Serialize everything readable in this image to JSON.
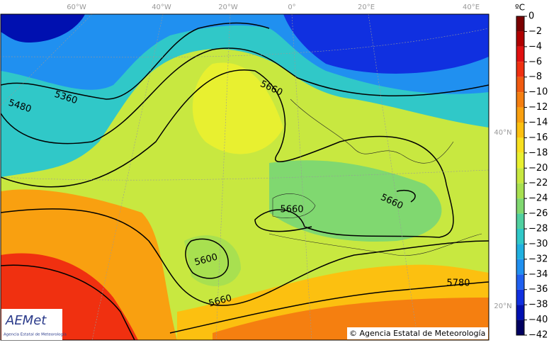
{
  "map": {
    "lon_labels": [
      "60°W",
      "40°W",
      "20°W",
      "0°",
      "20°E",
      "40°E"
    ],
    "lat_labels": [
      "40°N",
      "20°N"
    ],
    "contour_labels": [
      5360,
      5480,
      5660,
      5660,
      5660,
      5600,
      5660,
      5780
    ]
  },
  "colorbar": {
    "unit": "ºC",
    "ticks": [
      0,
      {
        "value": -2,
        "label": "−2"
      },
      {
        "value": -4,
        "label": "−4"
      },
      {
        "value": -6,
        "label": "−6"
      },
      {
        "value": -8,
        "label": "−8"
      },
      {
        "value": -10,
        "label": "−10"
      },
      {
        "value": -12,
        "label": "−12"
      },
      {
        "value": -14,
        "label": "−14"
      },
      {
        "value": -16,
        "label": "−16"
      },
      {
        "value": -18,
        "label": "−18"
      },
      {
        "value": -20,
        "label": "−20"
      },
      {
        "value": -22,
        "label": "−22"
      },
      {
        "value": -24,
        "label": "−24"
      },
      {
        "value": -26,
        "label": "−26"
      },
      {
        "value": -28,
        "label": "−28"
      },
      {
        "value": -30,
        "label": "−30"
      },
      {
        "value": -32,
        "label": "−32"
      },
      {
        "value": -34,
        "label": "−34"
      },
      {
        "value": -36,
        "label": "−36"
      },
      {
        "value": -38,
        "label": "−38"
      },
      {
        "value": -40,
        "label": "−40"
      },
      {
        "value": -42,
        "label": "−42"
      }
    ],
    "colors": [
      "#7a0000",
      "#b00000",
      "#e01010",
      "#f03010",
      "#f05a10",
      "#f57f10",
      "#f9a010",
      "#fcc010",
      "#f8e020",
      "#e8f030",
      "#c8e840",
      "#a8e050",
      "#80d870",
      "#50d0a0",
      "#30c8c8",
      "#20b0e0",
      "#2090f0",
      "#2060f0",
      "#1030e0",
      "#0010b0",
      "#000060"
    ]
  },
  "logo": {
    "name": "AEMet",
    "subtitle": "Agencia Estatal de Meteorología"
  },
  "copyright": "© Agencia Estatal de Meteorología"
}
